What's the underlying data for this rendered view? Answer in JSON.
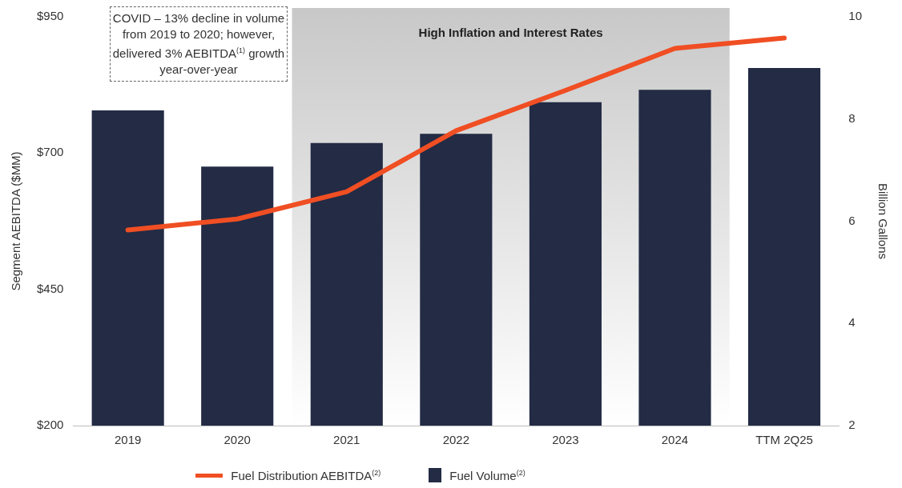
{
  "chart_data": {
    "type": "bar",
    "ylabel": "Segment AEBITDA ($MM)",
    "y2label": "Billion Gallons",
    "categories": [
      "2019",
      "2020",
      "2021",
      "2022",
      "2023",
      "2024",
      "TTM 2Q25"
    ],
    "series": [
      {
        "name": "Fuel Distribution AEBITDA$^{(2)}$",
        "type": "line",
        "color": "#f04e23",
        "values": [
          559,
          579,
          629,
          741,
          815,
          892,
          911
        ]
      },
      {
        "name": "Fuel Volume$^{(2)}$",
        "axis": "y2",
        "color": "#232b45",
        "values": [
          8.17,
          7.07,
          7.53,
          7.71,
          8.33,
          8.57,
          9.0
        ]
      }
    ],
    "ylim": [
      200,
      950
    ],
    "yticks": [
      {
        "value": 200,
        "label": "$200"
      },
      {
        "value": 450,
        "label": "$450"
      },
      {
        "value": 700,
        "label": "$700"
      },
      {
        "value": 950,
        "label": "$950"
      }
    ],
    "y2lim": [
      2,
      10
    ],
    "y2ticks": [
      2,
      4,
      6,
      8,
      10
    ],
    "bands": [
      {
        "axis": "x",
        "from": "2021",
        "to": "2024",
        "label": "High Inflation and Interest Rates",
        "color": "#c8c8c8"
      }
    ],
    "annotations": [
      "COVID –  13% decline in volume from 2019 to 2020; however, delivered 3% AEBITDA$^{(1)}$ growth year-over-year"
    ],
    "legend": "bottom",
    "grid": false,
    "marker": "none"
  }
}
